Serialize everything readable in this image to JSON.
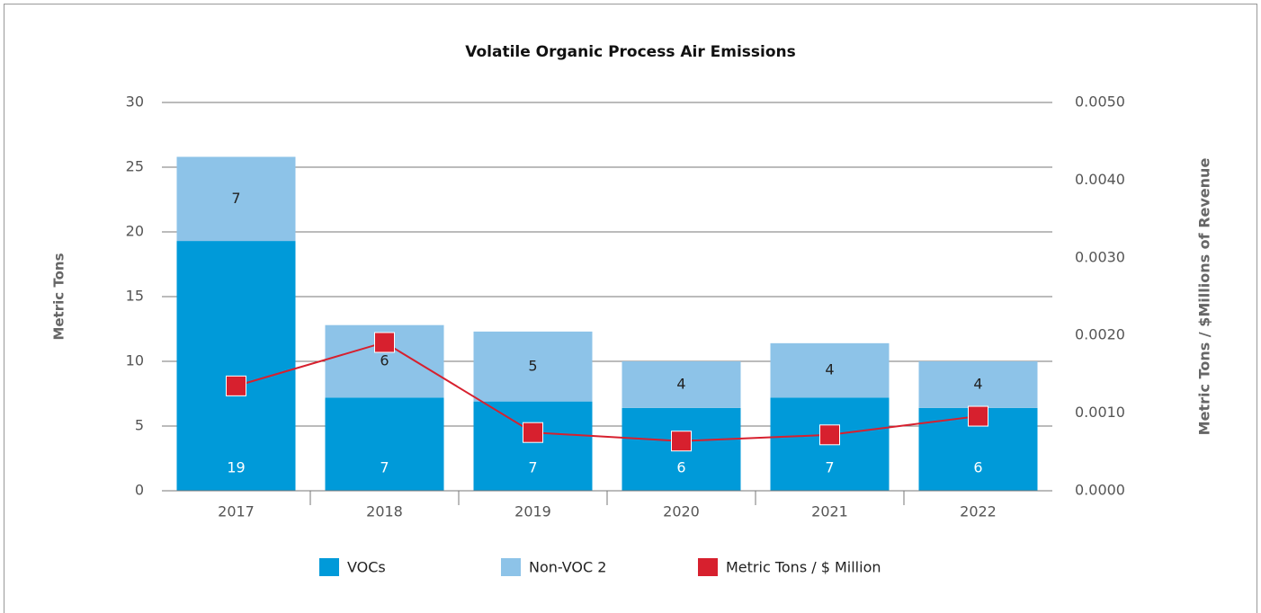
{
  "chart_data": {
    "type": "bar",
    "title": "Volatile Organic Process Air Emissions",
    "y_label": "Metric Tons",
    "y2_label": "Metric Tons / $Millions of Revenue",
    "categories": [
      "2017",
      "2018",
      "2019",
      "2020",
      "2021",
      "2022"
    ],
    "stacked": true,
    "series": [
      {
        "name": "VOCs",
        "color": "#009ad9",
        "values": [
          19.3,
          7.2,
          6.9,
          6.4,
          7.2,
          6.4
        ],
        "value_labels": [
          "19",
          "7",
          "7",
          "6",
          "7",
          "6"
        ]
      },
      {
        "name": "Non-VOC 2",
        "color": "#8dc3e8",
        "values": [
          6.5,
          5.6,
          5.4,
          3.6,
          4.2,
          3.6
        ],
        "value_labels": [
          "7",
          "6",
          "5",
          "4",
          "4",
          "4"
        ]
      },
      {
        "name": "Metric Tons / $ Million",
        "type": "line",
        "axis": "y2",
        "color": "#d7202e",
        "values": [
          0.00135,
          0.00191,
          0.00075,
          0.00064,
          0.00072,
          0.00096
        ]
      }
    ],
    "ylim": [
      0,
      30
    ],
    "yticks": [
      0,
      5,
      10,
      15,
      20,
      25,
      30
    ],
    "y2lim": [
      0,
      0.005
    ],
    "y2ticks": [
      {
        "value": 0,
        "label": "0.0000"
      },
      {
        "value": 0.001,
        "label": "0.0010"
      },
      {
        "value": 0.002,
        "label": "0.0020"
      },
      {
        "value": 0.003,
        "label": "0.0030"
      },
      {
        "value": 0.004,
        "label": "0.0040"
      },
      {
        "value": 0.005,
        "label": "0.0050"
      }
    ],
    "grid": true,
    "legend": "bottom"
  }
}
